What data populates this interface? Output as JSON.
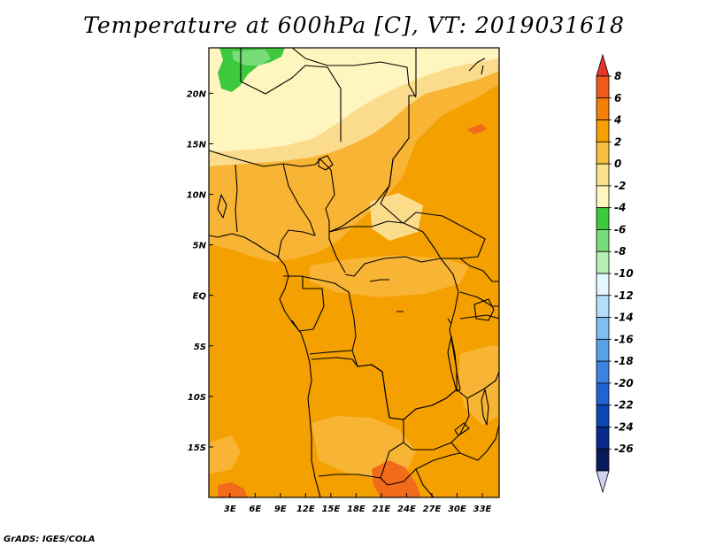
{
  "title": "Temperature at 600hPa [C], VT: 2019031618",
  "credit": "GrADS: IGES/COLA",
  "map": {
    "lat_ticks": [
      "20N",
      "15N",
      "10N",
      "5N",
      "EQ",
      "5S",
      "10S",
      "15S"
    ],
    "lat_values": [
      20,
      15,
      10,
      5,
      0,
      -5,
      -10,
      -15
    ],
    "lon_ticks": [
      "3E",
      "6E",
      "9E",
      "12E",
      "15E",
      "18E",
      "21E",
      "24E",
      "27E",
      "30E",
      "33E"
    ],
    "lon_values": [
      3,
      6,
      9,
      12,
      15,
      18,
      21,
      24,
      27,
      30,
      33
    ],
    "lon_range": [
      0.5,
      35
    ],
    "lat_range": [
      -20,
      24.5
    ]
  },
  "colorbar": {
    "labels": [
      "8",
      "6",
      "4",
      "2",
      "0",
      "-2",
      "-4",
      "-6",
      "-8",
      "-10",
      "-12",
      "-14",
      "-16",
      "-18",
      "-20",
      "-22",
      "-24",
      "-26"
    ],
    "colors": [
      "#e8352a",
      "#f05a1a",
      "#f4800c",
      "#f8a000",
      "#f8c040",
      "#fbe28c",
      "#fff5be",
      "#3ec83e",
      "#78dc78",
      "#b4f0b4",
      "#e4f7ff",
      "#b4defa",
      "#7fbff0",
      "#5aa2e8",
      "#3c82e0",
      "#1f64d2",
      "#0c46b4",
      "#082a8c",
      "#081a5a",
      "#d2d2f2"
    ]
  },
  "colors": {
    "ocean": "#f4a000",
    "warm": "#f8b434",
    "cool": "#fbdc8c",
    "cold": "#fff5be",
    "green": "#3ec83e",
    "hot": "#f26b1a",
    "border": "#000000"
  }
}
